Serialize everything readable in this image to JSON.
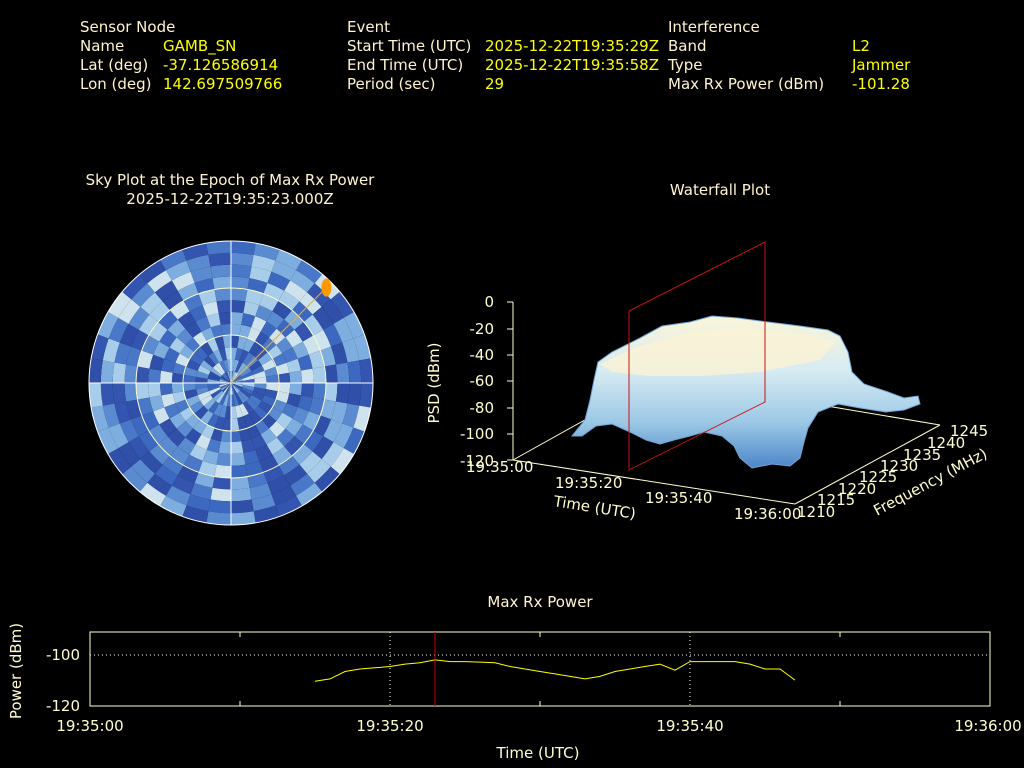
{
  "header": {
    "sensor": {
      "heading": "Sensor Node",
      "rows": [
        {
          "key": "Name",
          "value": "GAMB_SN"
        },
        {
          "key": "Lat (deg)",
          "value": "-37.126586914"
        },
        {
          "key": "Lon (deg)",
          "value": "142.697509766"
        }
      ]
    },
    "event": {
      "heading": "Event",
      "rows": [
        {
          "key": "Start Time (UTC)",
          "value": "2025-12-22T19:35:29Z"
        },
        {
          "key": "End Time (UTC)",
          "value": "2025-12-22T19:35:58Z"
        },
        {
          "key": "Period (sec)",
          "value": "29"
        }
      ]
    },
    "interference": {
      "heading": "Interference",
      "rows": [
        {
          "key": "Band",
          "value": "L2"
        },
        {
          "key": "Type",
          "value": "Jammer"
        },
        {
          "key": "Max Rx Power (dBm)",
          "value": "-101.28"
        }
      ]
    }
  },
  "colors": {
    "key": "#fff4cc",
    "value": "#ffff00",
    "series": "#ffff00",
    "marker": "#d00000",
    "grid": "#ffffff"
  },
  "chart_data": [
    {
      "type": "heatmap",
      "title": "Sky Plot at the Epoch of Max Rx Power",
      "subtitle": "2025-12-22T19:35:23.000Z",
      "projection": "polar",
      "rings": 3,
      "spokes": 4,
      "interference_direction_az_deg": 45,
      "interference_direction_elev_fraction": 0.95
    },
    {
      "type": "area",
      "title": "Waterfall Plot",
      "zlabel": "PSD (dBm)",
      "xlabel": "Time (UTC)",
      "ylabel": "Frequency (MHz)",
      "zticks": [
        "0",
        "-20",
        "-40",
        "-60",
        "-80",
        "-100",
        "-120"
      ],
      "xticks": [
        "19:35:00",
        "19:35:20",
        "19:35:40",
        "19:36:00"
      ],
      "yticks": [
        "1210",
        "1215",
        "1220",
        "1225",
        "1230",
        "1235",
        "1240",
        "1245"
      ],
      "zlim": [
        -120,
        0
      ],
      "surface_level_dbm": -25,
      "noise_floor_dbm": -95,
      "marker_time": "19:35:23"
    },
    {
      "type": "line",
      "title": "Max Rx Power",
      "xlabel": "Time (UTC)",
      "ylabel": "Power (dBm)",
      "xticks": [
        "19:35:00",
        "19:35:20",
        "19:35:40",
        "19:36:00"
      ],
      "yticks": [
        "-100",
        "-120"
      ],
      "xlim_sec": [
        0,
        60
      ],
      "ylim": [
        -120,
        -90
      ],
      "marker_sec": 23,
      "series": [
        {
          "name": "Max Rx Power",
          "x": [
            15,
            16,
            17,
            18,
            19,
            20,
            21,
            22,
            23,
            24,
            25,
            26,
            27,
            28,
            29,
            30,
            31,
            32,
            33,
            34,
            35,
            36,
            37,
            38,
            39,
            40,
            41,
            42,
            43,
            44,
            45,
            46,
            47
          ],
          "y": [
            -110,
            -109,
            -106,
            -105,
            -104.5,
            -104,
            -103,
            -102.5,
            -101.3,
            -102,
            -102,
            -102.2,
            -102.5,
            -104,
            -105,
            -106,
            -107,
            -108,
            -109,
            -108,
            -106,
            -105,
            -104,
            -103,
            -105.5,
            -102,
            -102,
            -102,
            -102,
            -103,
            -105,
            -105,
            -109.5
          ]
        }
      ]
    }
  ]
}
